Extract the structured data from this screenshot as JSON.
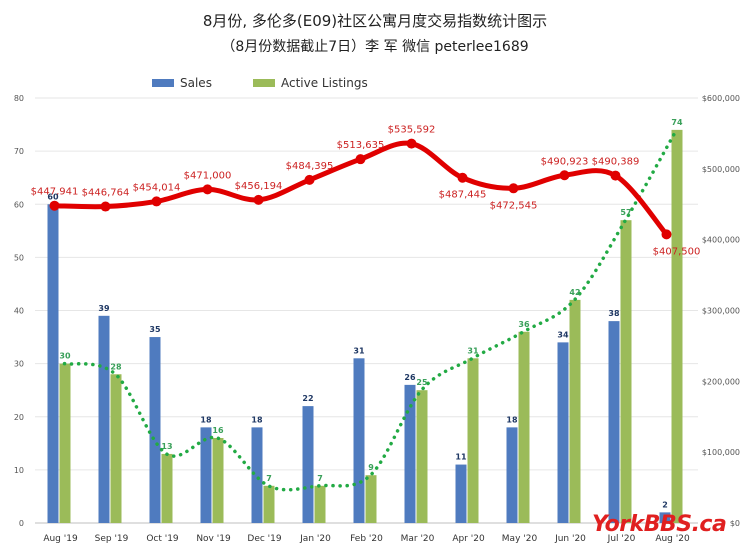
{
  "titles": {
    "line1": "8月份, 多伦多(E09)社区公寓月度交易指数统计图示",
    "line2": "（8月份数据截止7日）李 军  微信  peterlee1689"
  },
  "watermark": "YorkBBS.ca",
  "colors": {
    "sales": "#4f7bbf",
    "active": "#9bbb59",
    "price_line": "#e00000",
    "price_label": "#cc2222",
    "trend": "#22aa44",
    "sales_label": "#1f3864",
    "active_label": "#3aa05a",
    "grid": "#e6e6e6"
  },
  "chart_data": {
    "type": "bar",
    "categories": [
      "Aug '19",
      "Sep '19",
      "Oct '19",
      "Nov '19",
      "Dec '19",
      "Jan '20",
      "Feb '20",
      "Mar '20",
      "Apr '20",
      "May '20",
      "Jun '20",
      "Jul '20",
      "Aug '20"
    ],
    "series": [
      {
        "name": "Sales",
        "values": [
          60,
          39,
          35,
          18,
          18,
          22,
          31,
          26,
          11,
          18,
          34,
          38,
          2
        ],
        "value_labels": [
          "60",
          "39",
          "35",
          "18",
          "18",
          "22",
          "31",
          "26",
          "11",
          "18",
          "34",
          "38",
          "2"
        ]
      },
      {
        "name": "Active Listings",
        "values": [
          30,
          28,
          13,
          16,
          7,
          7,
          9,
          25,
          31,
          36,
          42,
          57,
          74
        ],
        "value_labels": [
          "30",
          "28",
          "13",
          "16",
          "7",
          "7",
          "9",
          "25",
          "31",
          "36",
          "42",
          "57",
          "74"
        ]
      }
    ],
    "price": {
      "values": [
        447941,
        446764,
        454014,
        471000,
        456194,
        484395,
        513635,
        535592,
        487445,
        472545,
        490923,
        490389,
        407500
      ],
      "labels": [
        "$447,941",
        "$446,764",
        "$454,014",
        "$471,000",
        "$456,194",
        "$484,395",
        "$513,635",
        "$535,592",
        "$487,445",
        "$472,545",
        "$490,923",
        "$490,389",
        "$407,500"
      ]
    },
    "ylim": [
      0,
      80
    ],
    "yticks": [
      "0",
      "10",
      "20",
      "30",
      "40",
      "50",
      "60",
      "70",
      "80"
    ],
    "y2lim": [
      0,
      600000
    ],
    "y2ticks": [
      "$0",
      "$100,000",
      "$200,000",
      "$300,000",
      "$400,000",
      "$500,000",
      "$600,000"
    ],
    "grid": true,
    "legend": "top-left"
  }
}
